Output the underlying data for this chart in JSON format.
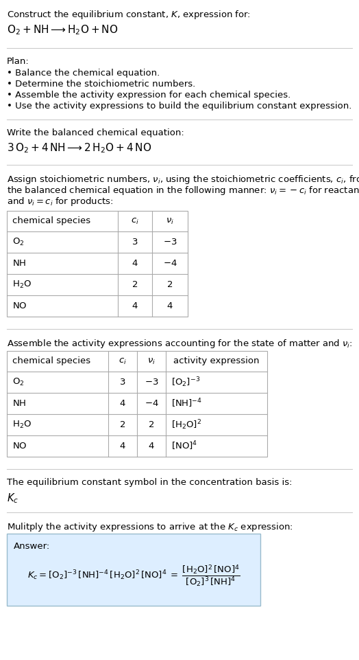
{
  "title_line1": "Construct the equilibrium constant, $K$, expression for:",
  "reaction_unbalanced": "$\\mathrm{O_2 + NH \\longrightarrow H_2O + NO}$",
  "plan_header": "Plan:",
  "plan_items": [
    "• Balance the chemical equation.",
    "• Determine the stoichiometric numbers.",
    "• Assemble the activity expression for each chemical species.",
    "• Use the activity expressions to build the equilibrium constant expression."
  ],
  "balanced_header": "Write the balanced chemical equation:",
  "balanced_eq": "$\\mathrm{3\\,O_2 + 4\\,NH \\longrightarrow 2\\,H_2O + 4\\,NO}$",
  "stoich_header_parts": [
    "Assign stoichiometric numbers, $\\nu_i$, using the stoichiometric coefficients, $c_i$, from",
    "the balanced chemical equation in the following manner: $\\nu_i = -c_i$ for reactants",
    "and $\\nu_i = c_i$ for products:"
  ],
  "table1_headers": [
    "chemical species",
    "$c_i$",
    "$\\nu_i$"
  ],
  "table1_rows": [
    [
      "$\\mathrm{O_2}$",
      "3",
      "$-3$"
    ],
    [
      "$\\mathrm{NH}$",
      "4",
      "$-4$"
    ],
    [
      "$\\mathrm{H_2O}$",
      "2",
      "2"
    ],
    [
      "$\\mathrm{NO}$",
      "4",
      "4"
    ]
  ],
  "activity_header": "Assemble the activity expressions accounting for the state of matter and $\\nu_i$:",
  "table2_headers": [
    "chemical species",
    "$c_i$",
    "$\\nu_i$",
    "activity expression"
  ],
  "table2_rows": [
    [
      "$\\mathrm{O_2}$",
      "3",
      "$-3$",
      "$[\\mathrm{O_2}]^{-3}$"
    ],
    [
      "$\\mathrm{NH}$",
      "4",
      "$-4$",
      "$[\\mathrm{NH}]^{-4}$"
    ],
    [
      "$\\mathrm{H_2O}$",
      "2",
      "2",
      "$[\\mathrm{H_2O}]^{2}$"
    ],
    [
      "$\\mathrm{NO}$",
      "4",
      "4",
      "$[\\mathrm{NO}]^{4}$"
    ]
  ],
  "kc_text": "The equilibrium constant symbol in the concentration basis is:",
  "kc_symbol": "$K_c$",
  "multiply_header": "Mulitply the activity expressions to arrive at the $K_c$ expression:",
  "answer_label": "Answer:",
  "kc_expr_lhs": "$K_c = [\\mathrm{O_2}]^{-3}\\,[\\mathrm{NH}]^{-4}\\,[\\mathrm{H_2O}]^{2}\\,[\\mathrm{NO}]^{4}\\; =\\; \\dfrac{[\\mathrm{H_2O}]^{2}\\,[\\mathrm{NO}]^{4}}{[\\mathrm{O_2}]^{3}\\,[\\mathrm{NH}]^{4}}$",
  "bg_color": "#ffffff",
  "text_color": "#000000",
  "table_border_color": "#aaaaaa",
  "answer_box_bg": "#ddeeff",
  "answer_box_border": "#99bbcc",
  "font_size": 9.5,
  "line_sep_color": "#cccccc"
}
